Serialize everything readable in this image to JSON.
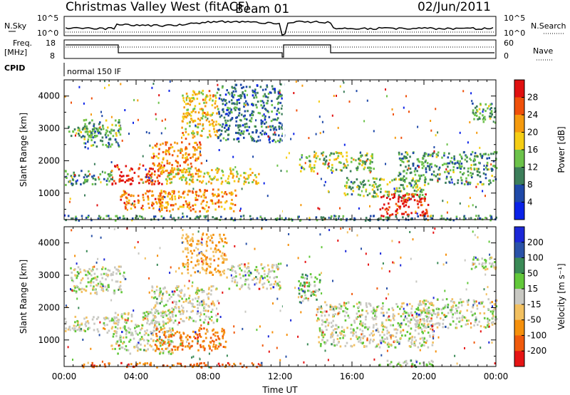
{
  "header": {
    "station": "Christmas Valley West (fitACF)",
    "beam": "Beam 01",
    "date": "02/Jun/2011"
  },
  "sidepanel": {
    "nsky_label": "N.Sky",
    "nsky_ticks": [
      "10^5",
      "10^0"
    ],
    "nsearch_label": "N.Search",
    "nsearch_ticks": [
      "10^5",
      "10^0"
    ],
    "freq_label": "Freq.",
    "freq_unit": "[MHz]",
    "freq_ticks": [
      "18",
      "8"
    ],
    "nave_label": "Nave",
    "nave_ticks": [
      "60",
      "0"
    ],
    "cpid_label": "CPID",
    "cpid_value": "normal 150 IF"
  },
  "colors": {
    "power": [
      "#0a22e8",
      "#1f49a8",
      "#3c7e5a",
      "#6cc24a",
      "#f5cd14",
      "#f59a0e",
      "#f0500a",
      "#e01010"
    ],
    "velocity": [
      "#e61414",
      "#f05a0c",
      "#f5900c",
      "#f2c060",
      "#c8c8c2",
      "#62c83a",
      "#3a8a56",
      "#2a52a8",
      "#1c28d8"
    ]
  },
  "chart_data": [
    {
      "type": "heatmap",
      "title": "Power",
      "xlabel": "",
      "ylabel": "Slant Range [km]",
      "x_ticks": [
        "00:00",
        "04:00",
        "08:00",
        "12:00",
        "16:00",
        "20:00",
        "00:00"
      ],
      "y_ticks": [
        1000,
        2000,
        3000,
        4000
      ],
      "xlim_hours": [
        0,
        24
      ],
      "ylim_km": [
        180,
        4500
      ],
      "colorbar": {
        "label": "Power [dB]",
        "ticks": [
          4,
          8,
          12,
          16,
          20,
          24,
          28
        ],
        "range": [
          0,
          32
        ]
      },
      "bands": [
        {
          "t0": 0.0,
          "t1": 2.6,
          "r0": 1280,
          "r1": 1720,
          "level": 0.32
        },
        {
          "t0": 0.2,
          "t1": 2.0,
          "r0": 2750,
          "r1": 3100,
          "level": 0.42
        },
        {
          "t0": 1.0,
          "t1": 3.2,
          "r0": 2450,
          "r1": 3300,
          "level": 0.35
        },
        {
          "t0": 2.6,
          "t1": 5.4,
          "r0": 1300,
          "r1": 1900,
          "level": 0.86
        },
        {
          "t0": 3.0,
          "t1": 5.6,
          "r0": 500,
          "r1": 1100,
          "level": 0.75
        },
        {
          "t0": 4.8,
          "t1": 7.6,
          "r0": 1600,
          "r1": 2600,
          "level": 0.72
        },
        {
          "t0": 6.5,
          "t1": 8.6,
          "r0": 2700,
          "r1": 4200,
          "level": 0.6
        },
        {
          "t0": 5.6,
          "t1": 10.8,
          "r0": 1300,
          "r1": 1800,
          "level": 0.55
        },
        {
          "t0": 5.2,
          "t1": 9.6,
          "r0": 450,
          "r1": 1150,
          "level": 0.7
        },
        {
          "t0": 8.5,
          "t1": 12.2,
          "r0": 2600,
          "r1": 4400,
          "level": 0.28
        },
        {
          "t0": 13.0,
          "t1": 17.2,
          "r0": 1700,
          "r1": 2300,
          "level": 0.48
        },
        {
          "t0": 15.5,
          "t1": 20.0,
          "r0": 900,
          "r1": 1500,
          "level": 0.42
        },
        {
          "t0": 17.5,
          "t1": 20.2,
          "r0": 300,
          "r1": 1000,
          "level": 0.9
        },
        {
          "t0": 18.5,
          "t1": 24.0,
          "r0": 1300,
          "r1": 2300,
          "level": 0.35
        },
        {
          "t0": 22.6,
          "t1": 24.0,
          "r0": 3200,
          "r1": 3800,
          "level": 0.4
        },
        {
          "t0": 0.0,
          "t1": 24.0,
          "r0": 180,
          "r1": 330,
          "level": 0.3
        }
      ]
    },
    {
      "type": "heatmap",
      "title": "Velocity",
      "xlabel": "Time UT",
      "ylabel": "Slant Range [km]",
      "x_ticks": [
        "00:00",
        "04:00",
        "08:00",
        "12:00",
        "16:00",
        "20:00",
        "00:00"
      ],
      "y_ticks": [
        1000,
        2000,
        3000,
        4000
      ],
      "xlim_hours": [
        0,
        24
      ],
      "ylim_km": [
        180,
        4500
      ],
      "colorbar": {
        "label": "Velocity [m s⁻¹]",
        "ticks": [
          "200",
          "100",
          "50",
          "15",
          "-15",
          "-50",
          "-100",
          "-200"
        ]
      },
      "bands": [
        {
          "t0": 0.0,
          "t1": 3.0,
          "r0": 1250,
          "r1": 1750,
          "level": 0.5
        },
        {
          "t0": 0.3,
          "t1": 3.4,
          "r0": 2450,
          "r1": 3300,
          "level": 0.5
        },
        {
          "t0": 2.6,
          "t1": 6.0,
          "r0": 600,
          "r1": 1900,
          "level": 0.5
        },
        {
          "t0": 5.0,
          "t1": 9.0,
          "r0": 700,
          "r1": 1400,
          "level": 0.22
        },
        {
          "t0": 4.8,
          "t1": 8.5,
          "r0": 1500,
          "r1": 2700,
          "level": 0.5
        },
        {
          "t0": 6.5,
          "t1": 9.0,
          "r0": 3000,
          "r1": 4300,
          "level": 0.33
        },
        {
          "t0": 9.0,
          "t1": 12.0,
          "r0": 2600,
          "r1": 3400,
          "level": 0.5
        },
        {
          "t0": 13.0,
          "t1": 14.2,
          "r0": 2200,
          "r1": 3100,
          "level": 0.6
        },
        {
          "t0": 14.0,
          "t1": 20.5,
          "r0": 800,
          "r1": 2200,
          "level": 0.5
        },
        {
          "t0": 17.5,
          "t1": 20.5,
          "r0": 200,
          "r1": 400,
          "level": 0.6
        },
        {
          "t0": 19.5,
          "t1": 24.0,
          "r0": 1400,
          "r1": 2300,
          "level": 0.5
        },
        {
          "t0": 22.6,
          "t1": 24.0,
          "r0": 3200,
          "r1": 3600,
          "level": 0.5
        },
        {
          "t0": 1.0,
          "t1": 11.0,
          "r0": 180,
          "r1": 320,
          "level": 0.2
        }
      ]
    }
  ]
}
